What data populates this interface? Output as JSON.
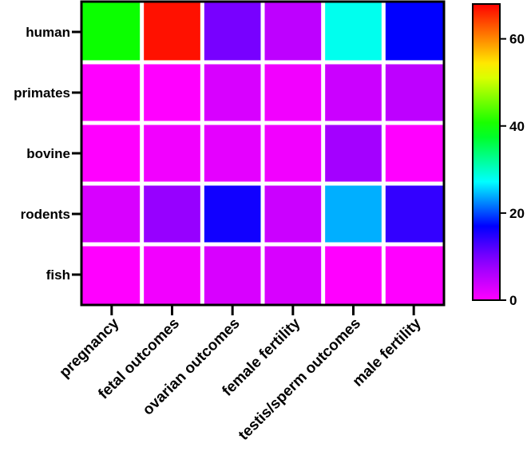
{
  "chart_data": {
    "type": "heatmap",
    "title": "",
    "xlabel": "",
    "ylabel": "",
    "x_categories": [
      "pregnancy",
      "fetal outcomes",
      "ovarian outcomes",
      "female fertility",
      "testis/sperm outcomes",
      "male fertility"
    ],
    "y_categories": [
      "human",
      "primates",
      "bovine",
      "rodents",
      "fish"
    ],
    "values": [
      [
        40,
        67,
        10,
        5,
        28,
        17
      ],
      [
        0,
        0,
        3,
        1,
        4,
        5
      ],
      [
        0,
        1,
        2,
        1,
        7,
        0
      ],
      [
        3,
        8,
        16,
        4,
        24,
        14
      ],
      [
        0,
        1,
        3,
        3,
        0,
        0
      ]
    ],
    "colorbar": {
      "min": 0,
      "max": 68,
      "ticks": [
        0,
        20,
        40,
        60
      ],
      "colormap": "rainbow magenta-to-red"
    },
    "grid": true,
    "legend": "colorbar-right"
  },
  "colors": {
    "gap": "#ffffff",
    "frame": "#000000"
  }
}
